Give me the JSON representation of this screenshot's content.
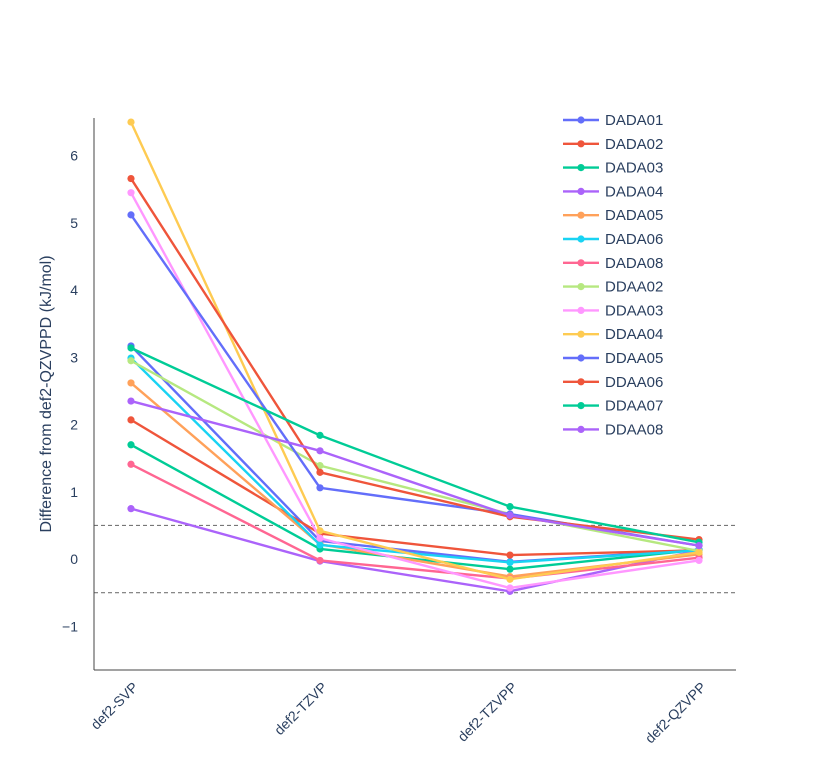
{
  "chart_data": {
    "type": "line",
    "title": "",
    "xlabel": "",
    "ylabel": "Difference from def2-QZVPPD (kJ/mol)",
    "categories": [
      "def2-SVP",
      "def2-TZVP",
      "def2-TZVPP",
      "def2-QZVPP"
    ],
    "ylim": [
      -1.65,
      6.65
    ],
    "yticks": [
      -1,
      0,
      1,
      2,
      3,
      4,
      5,
      6
    ],
    "ytick_labels": [
      "−1",
      "0",
      "1",
      "2",
      "3",
      "4",
      "5",
      "6"
    ],
    "reference_lines": [
      0.5,
      -0.5
    ],
    "legend_position": "top-right",
    "series": [
      {
        "name": "DADA01",
        "color": "#636efa",
        "values": [
          3.17,
          0.27,
          -0.04,
          0.14
        ]
      },
      {
        "name": "DADA02",
        "color": "#EF553B",
        "values": [
          2.07,
          0.38,
          0.06,
          0.13
        ]
      },
      {
        "name": "DADA03",
        "color": "#00cc96",
        "values": [
          1.7,
          0.15,
          -0.15,
          0.14
        ]
      },
      {
        "name": "DADA04",
        "color": "#ab63fa",
        "values": [
          0.75,
          -0.03,
          -0.48,
          0.13
        ]
      },
      {
        "name": "DADA05",
        "color": "#FFA15A",
        "values": [
          2.62,
          0.22,
          -0.26,
          0.07
        ]
      },
      {
        "name": "DADA06",
        "color": "#19d3f3",
        "values": [
          2.99,
          0.21,
          -0.05,
          0.13
        ]
      },
      {
        "name": "DADA08",
        "color": "#FF6692",
        "values": [
          1.41,
          -0.02,
          -0.29,
          0.02
        ]
      },
      {
        "name": "DDAA02",
        "color": "#B6E880",
        "values": [
          2.95,
          1.39,
          0.67,
          0.12
        ]
      },
      {
        "name": "DDAA03",
        "color": "#FF97FF",
        "values": [
          5.45,
          0.31,
          -0.43,
          -0.02
        ]
      },
      {
        "name": "DDAA04",
        "color": "#FECB52",
        "values": [
          6.5,
          0.42,
          -0.3,
          0.1
        ]
      },
      {
        "name": "DDAA05",
        "color": "#636efa",
        "values": [
          5.12,
          1.06,
          0.67,
          0.2
        ]
      },
      {
        "name": "DDAA06",
        "color": "#EF553B",
        "values": [
          5.66,
          1.29,
          0.63,
          0.29
        ]
      },
      {
        "name": "DDAA07",
        "color": "#00cc96",
        "values": [
          3.14,
          1.84,
          0.78,
          0.25
        ]
      },
      {
        "name": "DDAA08",
        "color": "#ab63fa",
        "values": [
          2.35,
          1.61,
          0.65,
          0.2
        ]
      }
    ]
  }
}
